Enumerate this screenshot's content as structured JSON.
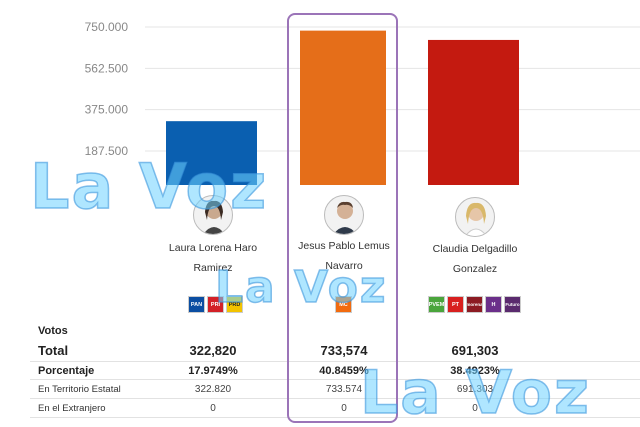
{
  "chart_data": {
    "type": "bar",
    "yticks": [
      "750.000",
      "562.500",
      "375.000",
      "187.500"
    ],
    "ylim": [
      0,
      750000
    ],
    "categories": [
      "Laura Lorena Haro Ramirez",
      "Jesus Pablo Lemus Navarro",
      "Claudia Delgadillo Gonzalez"
    ],
    "values": [
      322820,
      733574,
      691303
    ],
    "colors": [
      "#0a5fb0",
      "#e56e19",
      "#c41a10"
    ],
    "highlight_index": 1
  },
  "candidates": [
    {
      "name_line1": "Laura Lorena Haro",
      "name_line2": "Ramirez",
      "avatar_icon": "woman-portrait-icon",
      "parties": [
        {
          "label": "PAN",
          "color": "#0b4ea2",
          "icon": "pan-logo-icon"
        },
        {
          "label": "PRI",
          "color": "#d32027",
          "icon": "pri-logo-icon"
        },
        {
          "label": "PRD",
          "color": "#f2c300",
          "icon": "prd-logo-icon"
        }
      ]
    },
    {
      "name_line1": "Jesus Pablo Lemus",
      "name_line2": "Navarro",
      "avatar_icon": "man-portrait-icon",
      "parties": [
        {
          "label": "MC",
          "color": "#f26b0f",
          "icon": "movimiento-ciudadano-logo-icon"
        }
      ]
    },
    {
      "name_line1": "Claudia Delgadillo",
      "name_line2": "Gonzalez",
      "avatar_icon": "woman-portrait-icon",
      "parties": [
        {
          "label": "PVEM",
          "color": "#4aa53c",
          "icon": "pvem-logo-icon"
        },
        {
          "label": "PT",
          "color": "#d8201f",
          "icon": "pt-logo-icon"
        },
        {
          "label": "morena",
          "color": "#8c1b23",
          "icon": "morena-logo-icon"
        },
        {
          "label": "H",
          "color": "#6b2f8a",
          "icon": "hagamos-logo-icon"
        },
        {
          "label": "Futuro",
          "color": "#5a2a6e",
          "icon": "futuro-logo-icon"
        }
      ]
    }
  ],
  "table": {
    "votos_label": "Votos",
    "total_label": "Total",
    "porcentaje_label": "Porcentaje",
    "territorio_label": "En Territorio Estatal",
    "extranjero_label": "En el Extranjero",
    "total": [
      "322,820",
      "733,574",
      "691,303"
    ],
    "porcentaje": [
      "17.9749%",
      "40.8459%",
      "38.4923%"
    ],
    "territorio": [
      "322.820",
      "733.574",
      "691.303"
    ],
    "extranjero": [
      "0",
      "0",
      "0"
    ]
  },
  "watermark": {
    "text": "La Voz"
  }
}
